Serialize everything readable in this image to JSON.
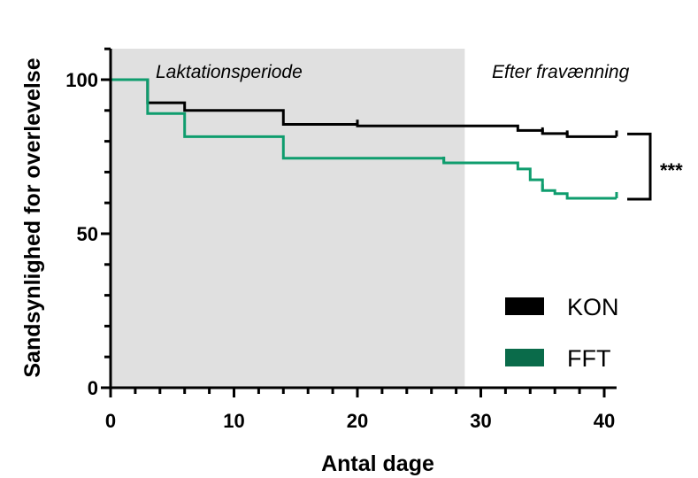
{
  "chart_data": {
    "type": "line",
    "subtype": "kaplan-meier step",
    "xlabel": "Antal dage",
    "ylabel": "Sandsynlighed for overlevelse",
    "xlim": [
      0,
      41
    ],
    "ylim": [
      0,
      110
    ],
    "x_ticks": [
      0,
      10,
      20,
      30,
      40
    ],
    "y_ticks": [
      0,
      50,
      100
    ],
    "x_tick_labels": [
      "0",
      "10",
      "20",
      "30",
      "40"
    ],
    "y_tick_labels": [
      "0",
      "50",
      "100"
    ],
    "grid": false,
    "legend_position": "bottom-right",
    "shaded_region": {
      "x_start": 0,
      "x_end": 28.7,
      "color": "#e0e0e0"
    },
    "region_labels": {
      "left": "Laktationsperiode",
      "right": "Efter fravænning"
    },
    "significance": "***",
    "series": [
      {
        "name": "KON",
        "color": "#000000",
        "steps": [
          [
            0,
            100
          ],
          [
            3,
            92.5
          ],
          [
            6,
            90
          ],
          [
            14,
            85.5
          ],
          [
            20,
            85
          ],
          [
            33,
            83.5
          ],
          [
            35,
            82.5
          ],
          [
            37,
            81.5
          ],
          [
            41,
            81.5
          ]
        ],
        "censor_x": [
          20,
          35,
          37,
          41
        ]
      },
      {
        "name": "FFT",
        "color": "#0f9d6e",
        "legend_color": "#0a6b4a",
        "steps": [
          [
            0,
            100
          ],
          [
            3,
            89
          ],
          [
            6,
            81.5
          ],
          [
            14,
            74.5
          ],
          [
            27,
            73
          ],
          [
            33,
            71
          ],
          [
            34,
            67.5
          ],
          [
            35,
            64
          ],
          [
            36,
            63
          ],
          [
            37,
            61.5
          ],
          [
            41,
            61.5
          ]
        ],
        "censor_x": [
          27,
          35,
          41
        ]
      }
    ]
  }
}
